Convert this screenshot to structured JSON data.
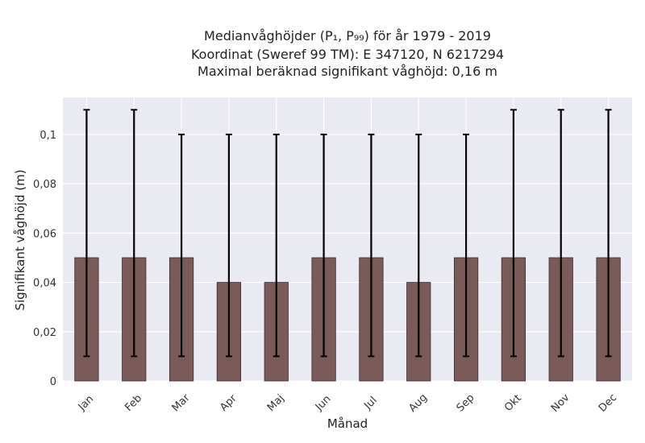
{
  "chart_data": {
    "type": "bar",
    "title_lines": [
      "Medianvåghöjder (P₁, P₉₉) för år 1979 - 2019",
      "Koordinat (Sweref 99 TM): E 347120, N 6217294",
      "Maximal beräknad signifikant våghöjd: 0,16 m"
    ],
    "xlabel": "Månad",
    "ylabel": "Signifikant våghöjd (m)",
    "categories": [
      "Jan",
      "Feb",
      "Mar",
      "Apr",
      "Maj",
      "Jun",
      "Jul",
      "Aug",
      "Sep",
      "Okt",
      "Nov",
      "Dec"
    ],
    "values": [
      0.05,
      0.05,
      0.05,
      0.04,
      0.04,
      0.05,
      0.05,
      0.04,
      0.05,
      0.05,
      0.05,
      0.05
    ],
    "error_low": [
      0.01,
      0.01,
      0.01,
      0.01,
      0.01,
      0.01,
      0.01,
      0.01,
      0.01,
      0.01,
      0.01,
      0.01
    ],
    "error_high": [
      0.11,
      0.11,
      0.1,
      0.1,
      0.1,
      0.1,
      0.1,
      0.1,
      0.1,
      0.11,
      0.11,
      0.11
    ],
    "ylim": [
      0,
      0.115
    ],
    "yticks": [
      0,
      0.02,
      0.04,
      0.06,
      0.08,
      0.1
    ],
    "ytick_labels": [
      "0",
      "0,02",
      "0,04",
      "0,06",
      "0,08",
      "0,1"
    ],
    "grid": true,
    "colors": {
      "bar": "#7b5a5a",
      "bar_edge": "#3d2b2b",
      "error": "#000000",
      "plot_bg": "#eaeaf2",
      "grid": "#ffffff"
    }
  }
}
